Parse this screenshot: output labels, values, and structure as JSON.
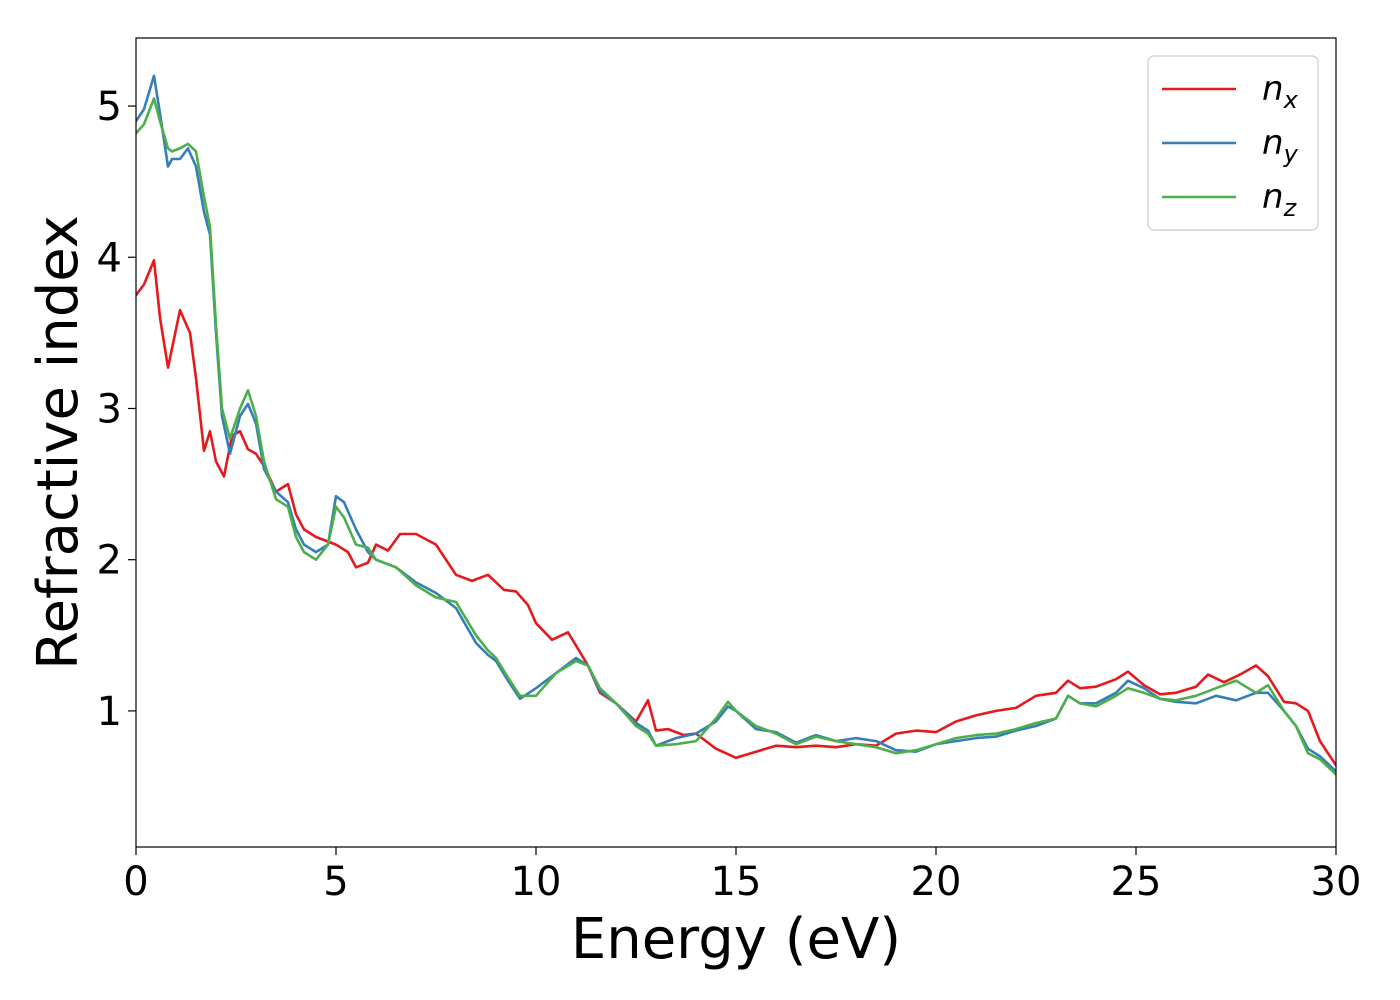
{
  "chart_data": {
    "type": "line",
    "title": "",
    "xlabel": "Energy (eV)",
    "ylabel": "Refractive index",
    "xlim": [
      0,
      30
    ],
    "ylim": [
      0.1,
      5.45
    ],
    "xticks": [
      0,
      5,
      10,
      15,
      20,
      25,
      30
    ],
    "yticks": [
      1,
      2,
      3,
      4,
      5
    ],
    "grid": false,
    "legend_position": "top-right",
    "series": [
      {
        "name": "n",
        "subscript": "x",
        "color": "#e41a1c",
        "x": [
          0,
          0.2,
          0.45,
          0.6,
          0.8,
          1.1,
          1.35,
          1.5,
          1.7,
          1.85,
          2.0,
          2.2,
          2.4,
          2.6,
          2.8,
          3.0,
          3.2,
          3.5,
          3.8,
          4.0,
          4.2,
          4.5,
          5.0,
          5.3,
          5.5,
          5.8,
          6.0,
          6.3,
          6.6,
          7.0,
          7.5,
          8.0,
          8.4,
          8.8,
          9.2,
          9.5,
          9.8,
          10.0,
          10.4,
          10.8,
          11.3,
          11.6,
          12.0,
          12.5,
          12.8,
          13.0,
          13.3,
          13.7,
          14.0,
          14.5,
          15.0,
          15.5,
          16.0,
          16.5,
          17.0,
          17.5,
          18.0,
          18.5,
          19.0,
          19.5,
          20.0,
          20.5,
          21.0,
          21.5,
          22.0,
          22.5,
          23.0,
          23.3,
          23.6,
          24.0,
          24.5,
          24.8,
          25.2,
          25.6,
          26.0,
          26.5,
          26.8,
          27.2,
          27.6,
          28.0,
          28.3,
          28.7,
          29.0,
          29.3,
          29.6,
          30.0
        ],
        "values": [
          3.75,
          3.82,
          3.98,
          3.6,
          3.27,
          3.65,
          3.5,
          3.2,
          2.72,
          2.85,
          2.65,
          2.55,
          2.82,
          2.85,
          2.73,
          2.7,
          2.62,
          2.45,
          2.5,
          2.3,
          2.2,
          2.15,
          2.1,
          2.05,
          1.95,
          1.98,
          2.1,
          2.06,
          2.17,
          2.17,
          2.1,
          1.9,
          1.86,
          1.9,
          1.8,
          1.79,
          1.7,
          1.58,
          1.47,
          1.52,
          1.3,
          1.12,
          1.05,
          0.93,
          1.07,
          0.87,
          0.88,
          0.84,
          0.85,
          0.75,
          0.69,
          0.73,
          0.77,
          0.76,
          0.77,
          0.76,
          0.78,
          0.77,
          0.85,
          0.87,
          0.86,
          0.93,
          0.97,
          1.0,
          1.02,
          1.1,
          1.12,
          1.2,
          1.15,
          1.16,
          1.21,
          1.26,
          1.17,
          1.11,
          1.12,
          1.16,
          1.24,
          1.19,
          1.24,
          1.3,
          1.23,
          1.06,
          1.05,
          1.0,
          0.8,
          0.64
        ]
      },
      {
        "name": "n",
        "subscript": "y",
        "color": "#377eb8",
        "x": [
          0,
          0.2,
          0.45,
          0.6,
          0.8,
          0.9,
          1.1,
          1.3,
          1.5,
          1.7,
          1.85,
          2.0,
          2.15,
          2.35,
          2.6,
          2.8,
          3.0,
          3.2,
          3.5,
          3.8,
          4.0,
          4.2,
          4.5,
          4.8,
          5.0,
          5.2,
          5.5,
          5.8,
          6.0,
          6.5,
          7.0,
          7.5,
          8.0,
          8.5,
          8.8,
          9.0,
          9.3,
          9.6,
          10.0,
          10.5,
          11.0,
          11.3,
          11.6,
          12.0,
          12.5,
          12.8,
          13.0,
          13.5,
          14.0,
          14.5,
          14.8,
          15.0,
          15.5,
          16.0,
          16.5,
          17.0,
          17.5,
          18.0,
          18.5,
          19.0,
          19.5,
          20.0,
          20.5,
          21.0,
          21.5,
          22.0,
          22.5,
          23.0,
          23.3,
          23.6,
          24.0,
          24.5,
          24.8,
          25.2,
          25.6,
          26.0,
          26.5,
          27.0,
          27.5,
          28.0,
          28.3,
          28.7,
          29.0,
          29.3,
          29.6,
          30.0
        ],
        "values": [
          4.9,
          4.98,
          5.2,
          4.95,
          4.6,
          4.65,
          4.65,
          4.72,
          4.6,
          4.3,
          4.15,
          3.5,
          2.95,
          2.7,
          2.95,
          3.03,
          2.9,
          2.6,
          2.45,
          2.38,
          2.2,
          2.1,
          2.05,
          2.1,
          2.42,
          2.38,
          2.2,
          2.05,
          2.0,
          1.95,
          1.85,
          1.78,
          1.68,
          1.45,
          1.37,
          1.33,
          1.2,
          1.08,
          1.15,
          1.25,
          1.35,
          1.3,
          1.13,
          1.05,
          0.92,
          0.87,
          0.77,
          0.82,
          0.85,
          0.93,
          1.03,
          1.0,
          0.88,
          0.86,
          0.79,
          0.84,
          0.8,
          0.82,
          0.8,
          0.74,
          0.73,
          0.78,
          0.8,
          0.82,
          0.83,
          0.87,
          0.9,
          0.95,
          1.1,
          1.05,
          1.05,
          1.12,
          1.2,
          1.15,
          1.08,
          1.06,
          1.05,
          1.1,
          1.07,
          1.12,
          1.12,
          1.0,
          0.9,
          0.75,
          0.7,
          0.6
        ]
      },
      {
        "name": "n",
        "subscript": "z",
        "color": "#4daf4a",
        "x": [
          0,
          0.2,
          0.45,
          0.6,
          0.8,
          0.9,
          1.1,
          1.3,
          1.5,
          1.7,
          1.85,
          2.0,
          2.15,
          2.35,
          2.6,
          2.8,
          3.0,
          3.2,
          3.5,
          3.8,
          4.0,
          4.2,
          4.5,
          4.8,
          5.0,
          5.2,
          5.5,
          5.8,
          6.0,
          6.5,
          7.0,
          7.5,
          8.0,
          8.5,
          8.8,
          9.0,
          9.3,
          9.6,
          10.0,
          10.5,
          11.0,
          11.3,
          11.6,
          12.0,
          12.5,
          12.8,
          13.0,
          13.5,
          14.0,
          14.5,
          14.8,
          15.0,
          15.5,
          16.0,
          16.5,
          17.0,
          17.5,
          18.0,
          18.5,
          19.0,
          19.5,
          20.0,
          20.5,
          21.0,
          21.5,
          22.0,
          22.5,
          23.0,
          23.3,
          23.6,
          24.0,
          24.5,
          24.8,
          25.2,
          25.6,
          26.0,
          26.5,
          27.0,
          27.5,
          28.0,
          28.3,
          28.7,
          29.0,
          29.3,
          29.6,
          30.0
        ],
        "values": [
          4.82,
          4.88,
          5.05,
          4.9,
          4.72,
          4.7,
          4.72,
          4.75,
          4.7,
          4.4,
          4.2,
          3.55,
          3.0,
          2.8,
          3.0,
          3.12,
          2.95,
          2.65,
          2.4,
          2.35,
          2.15,
          2.05,
          2.0,
          2.1,
          2.35,
          2.28,
          2.1,
          2.08,
          2.0,
          1.95,
          1.83,
          1.75,
          1.72,
          1.5,
          1.4,
          1.35,
          1.22,
          1.1,
          1.1,
          1.25,
          1.33,
          1.3,
          1.15,
          1.05,
          0.9,
          0.85,
          0.77,
          0.78,
          0.8,
          0.95,
          1.06,
          1.0,
          0.9,
          0.85,
          0.78,
          0.83,
          0.8,
          0.78,
          0.76,
          0.72,
          0.74,
          0.78,
          0.82,
          0.84,
          0.85,
          0.88,
          0.92,
          0.95,
          1.1,
          1.05,
          1.03,
          1.1,
          1.15,
          1.12,
          1.08,
          1.07,
          1.1,
          1.15,
          1.2,
          1.12,
          1.17,
          1.0,
          0.9,
          0.72,
          0.68,
          0.58
        ]
      }
    ]
  }
}
